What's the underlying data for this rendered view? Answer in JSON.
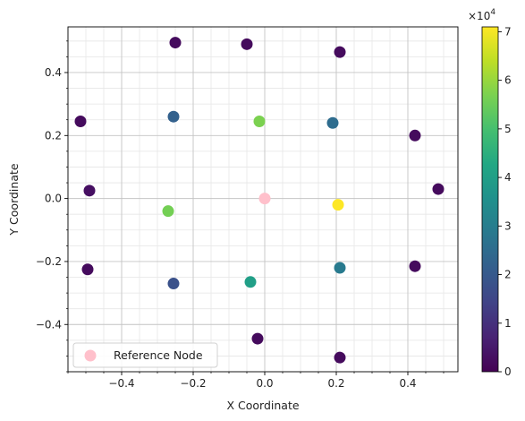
{
  "chart_data": {
    "type": "scatter",
    "xlabel": "X Coordinate",
    "ylabel": "Y Coordinate",
    "xlim": [
      -0.55,
      0.54
    ],
    "ylim": [
      -0.55,
      0.545
    ],
    "xticks": [
      -0.4,
      -0.2,
      0.0,
      0.2,
      0.4
    ],
    "xtick_labels": [
      "−0.4",
      "−0.2",
      "0.0",
      "0.2",
      "0.4"
    ],
    "yticks": [
      -0.4,
      -0.2,
      0.0,
      0.2,
      0.4
    ],
    "ytick_labels": [
      "−0.4",
      "−0.2",
      "0.0",
      "0.2",
      "0.4"
    ],
    "grid": "major and minor",
    "colorbar": {
      "colormap": "viridis",
      "range": [
        0,
        71000
      ],
      "ticks": [
        0,
        1,
        2,
        3,
        4,
        5,
        6,
        7
      ],
      "tick_labels": [
        "0",
        "1",
        "2",
        "3",
        "4",
        "5",
        "6",
        "7"
      ],
      "scale_label": "×10",
      "scale_exponent": "4"
    },
    "points": [
      {
        "x": -0.25,
        "y": 0.495,
        "value": 2000
      },
      {
        "x": -0.05,
        "y": 0.49,
        "value": 2000
      },
      {
        "x": 0.21,
        "y": 0.465,
        "value": 2000
      },
      {
        "x": -0.515,
        "y": 0.245,
        "value": 2000
      },
      {
        "x": -0.255,
        "y": 0.26,
        "value": 22000
      },
      {
        "x": -0.015,
        "y": 0.245,
        "value": 57000
      },
      {
        "x": 0.19,
        "y": 0.24,
        "value": 25000
      },
      {
        "x": 0.42,
        "y": 0.2,
        "value": 2000
      },
      {
        "x": -0.49,
        "y": 0.025,
        "value": 3000
      },
      {
        "x": -0.27,
        "y": -0.04,
        "value": 56000
      },
      {
        "x": 0.205,
        "y": -0.02,
        "value": 71000
      },
      {
        "x": 0.485,
        "y": 0.03,
        "value": 2000
      },
      {
        "x": -0.495,
        "y": -0.225,
        "value": 2000
      },
      {
        "x": -0.255,
        "y": -0.27,
        "value": 18000
      },
      {
        "x": -0.04,
        "y": -0.265,
        "value": 40000
      },
      {
        "x": 0.21,
        "y": -0.22,
        "value": 29000
      },
      {
        "x": 0.42,
        "y": -0.215,
        "value": 2000
      },
      {
        "x": -0.02,
        "y": -0.445,
        "value": 2000
      },
      {
        "x": 0.21,
        "y": -0.505,
        "value": 2000
      }
    ],
    "reference_node": {
      "x": 0.0,
      "y": 0.0,
      "color": "#ffc0cb",
      "label": "Reference Node"
    },
    "legend": {
      "placement": "lower-left",
      "entries": [
        "Reference Node"
      ]
    }
  }
}
